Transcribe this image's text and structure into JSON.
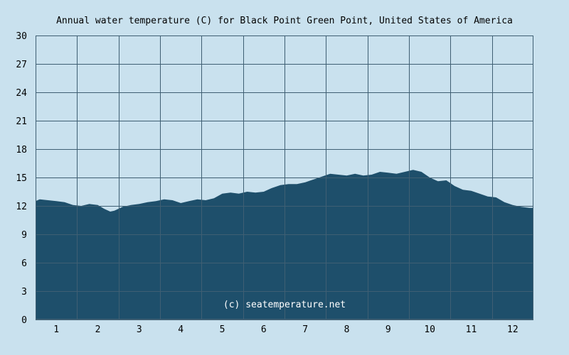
{
  "chart_data": {
    "type": "area",
    "title": "Annual water temperature (C) for Black Point Green Point, United States of America",
    "xlabel": "",
    "ylabel": "",
    "x_ticks": [
      "1",
      "2",
      "3",
      "4",
      "5",
      "6",
      "7",
      "8",
      "9",
      "10",
      "11",
      "12"
    ],
    "y_ticks": [
      0,
      3,
      6,
      9,
      12,
      15,
      18,
      21,
      24,
      27,
      30
    ],
    "ylim": [
      0,
      30
    ],
    "xlim": [
      0.5,
      12.5
    ],
    "grid": true,
    "watermark": "(c) seatemperature.net",
    "series": [
      {
        "x": [
          0.5,
          0.6,
          0.8,
          1.0,
          1.2,
          1.4,
          1.6,
          1.8,
          2.0,
          2.15,
          2.3,
          2.4,
          2.5,
          2.6,
          2.8,
          3.0,
          3.2,
          3.4,
          3.6,
          3.8,
          4.0,
          4.2,
          4.4,
          4.6,
          4.8,
          5.0,
          5.2,
          5.4,
          5.6,
          5.8,
          6.0,
          6.2,
          6.4,
          6.6,
          6.8,
          7.0,
          7.2,
          7.4,
          7.6,
          7.8,
          8.0,
          8.2,
          8.4,
          8.6,
          8.8,
          9.0,
          9.2,
          9.4,
          9.6,
          9.8,
          10.0,
          10.2,
          10.4,
          10.6,
          10.8,
          11.0,
          11.2,
          11.4,
          11.6,
          11.8,
          12.0,
          12.2,
          12.4,
          12.5
        ],
        "values": [
          12.5,
          12.7,
          12.6,
          12.5,
          12.4,
          12.1,
          12.0,
          12.2,
          12.1,
          11.7,
          11.4,
          11.5,
          11.7,
          11.9,
          12.1,
          12.2,
          12.4,
          12.5,
          12.7,
          12.6,
          12.3,
          12.5,
          12.7,
          12.6,
          12.8,
          13.3,
          13.4,
          13.3,
          13.5,
          13.4,
          13.5,
          13.9,
          14.2,
          14.3,
          14.3,
          14.5,
          14.8,
          15.1,
          15.4,
          15.3,
          15.2,
          15.4,
          15.2,
          15.3,
          15.6,
          15.5,
          15.4,
          15.6,
          15.8,
          15.6,
          15.0,
          14.6,
          14.7,
          14.1,
          13.7,
          13.6,
          13.3,
          13.0,
          12.9,
          12.4,
          12.1,
          11.9,
          11.8,
          11.8
        ],
        "color": "#1e4f6b"
      }
    ],
    "colors": {
      "background": "#c9e1ee",
      "plot_background": "#c9e1ee",
      "fill": "#1e4f6b",
      "grid": "#3f5f73",
      "text": "#000000",
      "watermark": "#ffffff"
    }
  }
}
